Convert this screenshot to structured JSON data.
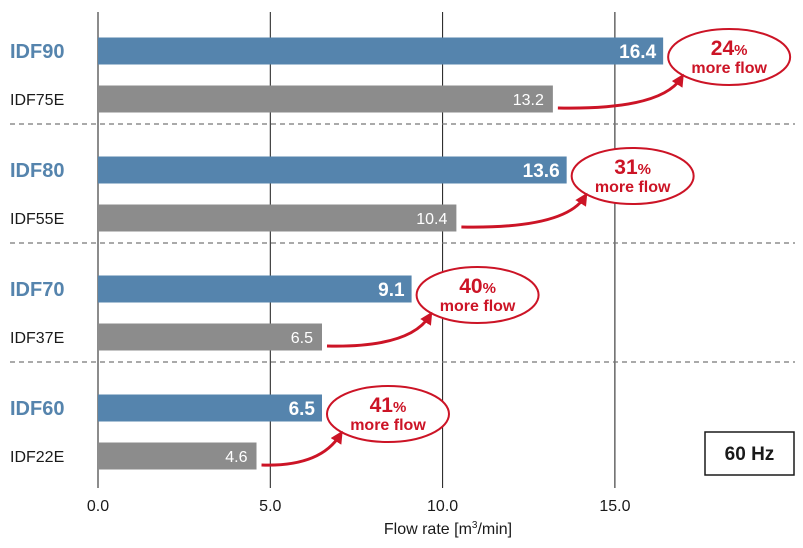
{
  "chart_data": {
    "type": "bar",
    "orientation": "horizontal",
    "xlabel_prefix": "Flow rate [m",
    "xlabel_sup": "3",
    "xlabel_suffix": "/min]",
    "xlim": [
      0,
      20
    ],
    "xticks": [
      {
        "value": 0,
        "label": "0.0"
      },
      {
        "value": 5,
        "label": "5.0"
      },
      {
        "value": 10,
        "label": "10.0"
      },
      {
        "value": 15,
        "label": "15.0"
      }
    ],
    "grid": "vertical",
    "box_label": "60 Hz",
    "groups": [
      {
        "new": {
          "label": "IDF90",
          "value": 16.4,
          "value_label": "16.4"
        },
        "old": {
          "label": "IDF75E",
          "value": 13.2,
          "value_label": "13.2"
        },
        "callout": {
          "percent": "24",
          "percent_sign": "%",
          "text": "more flow"
        }
      },
      {
        "new": {
          "label": "IDF80",
          "value": 13.6,
          "value_label": "13.6"
        },
        "old": {
          "label": "IDF55E",
          "value": 10.4,
          "value_label": "10.4"
        },
        "callout": {
          "percent": "31",
          "percent_sign": "%",
          "text": "more flow"
        }
      },
      {
        "new": {
          "label": "IDF70",
          "value": 9.1,
          "value_label": "9.1"
        },
        "old": {
          "label": "IDF37E",
          "value": 6.5,
          "value_label": "6.5"
        },
        "callout": {
          "percent": "40",
          "percent_sign": "%",
          "text": "more flow"
        }
      },
      {
        "new": {
          "label": "IDF60",
          "value": 6.5,
          "value_label": "6.5"
        },
        "old": {
          "label": "IDF22E",
          "value": 4.6,
          "value_label": "4.6"
        },
        "callout": {
          "percent": "41",
          "percent_sign": "%",
          "text": "more flow"
        }
      }
    ]
  },
  "colors": {
    "new_bar": "#5584ad",
    "old_bar": "#8c8c8c",
    "new_label": "#5584ad",
    "old_label": "#1a1a1a",
    "accent": "#cc1426",
    "grid": "#1a1a1a",
    "divider": "#777777"
  }
}
